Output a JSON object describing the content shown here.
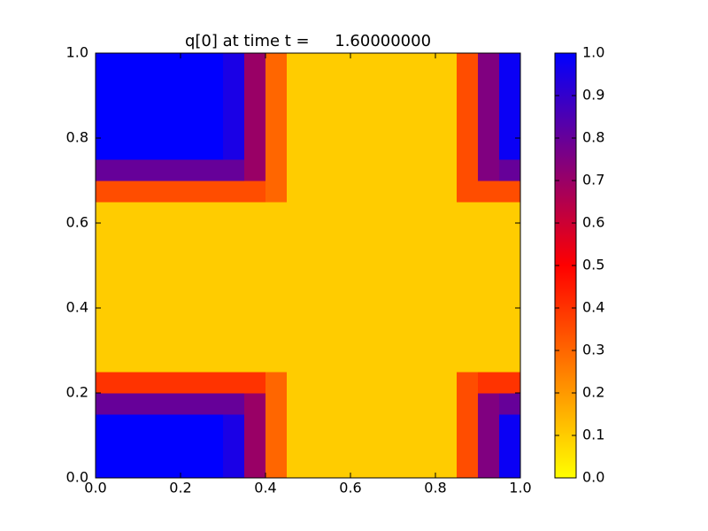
{
  "chart_data": {
    "type": "heatmap",
    "title": "q[0] at time t =     1.60000000",
    "xlim": [
      0,
      1
    ],
    "ylim": [
      0,
      1
    ],
    "xticks": [
      {
        "value": 0,
        "label": "0.0"
      },
      {
        "value": 0.2,
        "label": "0.2"
      },
      {
        "value": 0.4,
        "label": "0.4"
      },
      {
        "value": 0.6,
        "label": "0.6"
      },
      {
        "value": 0.8,
        "label": "0.8"
      },
      {
        "value": 1,
        "label": "1.0"
      }
    ],
    "yticks": [
      {
        "value": 0,
        "label": "0.0"
      },
      {
        "value": 0.2,
        "label": "0.2"
      },
      {
        "value": 0.4,
        "label": "0.4"
      },
      {
        "value": 0.6,
        "label": "0.6"
      },
      {
        "value": 0.8,
        "label": "0.8"
      },
      {
        "value": 1,
        "label": "1.0"
      }
    ],
    "clim": [
      0,
      1
    ],
    "cticks": [
      {
        "value": 0,
        "label": "0.0"
      },
      {
        "value": 0.1,
        "label": "0.1"
      },
      {
        "value": 0.2,
        "label": "0.2"
      },
      {
        "value": 0.3,
        "label": "0.3"
      },
      {
        "value": 0.4,
        "label": "0.4"
      },
      {
        "value": 0.5,
        "label": "0.5"
      },
      {
        "value": 0.6,
        "label": "0.6"
      },
      {
        "value": 0.7,
        "label": "0.7"
      },
      {
        "value": 0.8,
        "label": "0.8"
      },
      {
        "value": 0.9,
        "label": "0.9"
      },
      {
        "value": 1,
        "label": "1.0"
      }
    ],
    "colormap": [
      [
        0,
        "#ffff00"
      ],
      [
        0.5,
        "#ff0000"
      ],
      [
        0.75,
        "#800080"
      ],
      [
        1,
        "#0000ff"
      ]
    ],
    "z": [
      [
        1,
        1,
        1,
        1,
        1,
        1,
        0.95,
        0.7,
        0.3,
        0.1,
        0.1,
        0.1,
        0.1,
        0.1,
        0.1,
        0.1,
        0.1,
        0.35,
        0.75,
        0.98
      ],
      [
        1,
        1,
        1,
        1,
        1,
        1,
        0.95,
        0.7,
        0.3,
        0.1,
        0.1,
        0.1,
        0.1,
        0.1,
        0.1,
        0.1,
        0.1,
        0.35,
        0.75,
        0.98
      ],
      [
        1,
        1,
        1,
        1,
        1,
        1,
        0.95,
        0.7,
        0.3,
        0.1,
        0.1,
        0.1,
        0.1,
        0.1,
        0.1,
        0.1,
        0.1,
        0.35,
        0.75,
        0.98
      ],
      [
        0.8,
        0.8,
        0.8,
        0.8,
        0.8,
        0.8,
        0.8,
        0.7,
        0.3,
        0.1,
        0.1,
        0.1,
        0.1,
        0.1,
        0.1,
        0.1,
        0.1,
        0.35,
        0.75,
        0.8
      ],
      [
        0.4,
        0.4,
        0.4,
        0.4,
        0.4,
        0.4,
        0.4,
        0.4,
        0.3,
        0.1,
        0.1,
        0.1,
        0.1,
        0.1,
        0.1,
        0.1,
        0.1,
        0.35,
        0.4,
        0.4
      ],
      [
        0.1,
        0.1,
        0.1,
        0.1,
        0.1,
        0.1,
        0.1,
        0.1,
        0.1,
        0.1,
        0.1,
        0.1,
        0.1,
        0.1,
        0.1,
        0.1,
        0.1,
        0.1,
        0.1,
        0.1
      ],
      [
        0.1,
        0.1,
        0.1,
        0.1,
        0.1,
        0.1,
        0.1,
        0.1,
        0.1,
        0.1,
        0.1,
        0.1,
        0.1,
        0.1,
        0.1,
        0.1,
        0.1,
        0.1,
        0.1,
        0.1
      ],
      [
        0.1,
        0.1,
        0.1,
        0.1,
        0.1,
        0.1,
        0.1,
        0.1,
        0.1,
        0.1,
        0.1,
        0.1,
        0.1,
        0.1,
        0.1,
        0.1,
        0.1,
        0.1,
        0.1,
        0.1
      ],
      [
        0.1,
        0.1,
        0.1,
        0.1,
        0.1,
        0.1,
        0.1,
        0.1,
        0.1,
        0.1,
        0.1,
        0.1,
        0.1,
        0.1,
        0.1,
        0.1,
        0.1,
        0.1,
        0.1,
        0.1
      ],
      [
        0.1,
        0.1,
        0.1,
        0.1,
        0.1,
        0.1,
        0.1,
        0.1,
        0.1,
        0.1,
        0.1,
        0.1,
        0.1,
        0.1,
        0.1,
        0.1,
        0.1,
        0.1,
        0.1,
        0.1
      ],
      [
        0.1,
        0.1,
        0.1,
        0.1,
        0.1,
        0.1,
        0.1,
        0.1,
        0.1,
        0.1,
        0.1,
        0.1,
        0.1,
        0.1,
        0.1,
        0.1,
        0.1,
        0.1,
        0.1,
        0.1
      ],
      [
        0.1,
        0.1,
        0.1,
        0.1,
        0.1,
        0.1,
        0.1,
        0.1,
        0.1,
        0.1,
        0.1,
        0.1,
        0.1,
        0.1,
        0.1,
        0.1,
        0.1,
        0.1,
        0.1,
        0.1
      ],
      [
        0.1,
        0.1,
        0.1,
        0.1,
        0.1,
        0.1,
        0.1,
        0.1,
        0.1,
        0.1,
        0.1,
        0.1,
        0.1,
        0.1,
        0.1,
        0.1,
        0.1,
        0.1,
        0.1,
        0.1
      ],
      [
        0.35,
        0.35,
        0.35,
        0.35,
        0.35,
        0.35,
        0.35,
        0.35,
        0.3,
        0.1,
        0.1,
        0.1,
        0.1,
        0.1,
        0.1,
        0.1,
        0.1,
        0.35,
        0.35,
        0.35
      ],
      [
        0.8,
        0.8,
        0.8,
        0.8,
        0.8,
        0.8,
        0.8,
        0.7,
        0.3,
        0.1,
        0.1,
        0.1,
        0.1,
        0.1,
        0.1,
        0.1,
        0.1,
        0.35,
        0.75,
        0.8
      ],
      [
        1,
        1,
        1,
        1,
        1,
        1,
        0.95,
        0.7,
        0.3,
        0.1,
        0.1,
        0.1,
        0.1,
        0.1,
        0.1,
        0.1,
        0.1,
        0.35,
        0.75,
        0.98
      ],
      [
        1,
        1,
        1,
        1,
        1,
        1,
        0.95,
        0.7,
        0.3,
        0.1,
        0.1,
        0.1,
        0.1,
        0.1,
        0.1,
        0.1,
        0.1,
        0.35,
        0.75,
        0.98
      ],
      [
        1,
        1,
        1,
        1,
        1,
        1,
        0.95,
        0.7,
        0.3,
        0.1,
        0.1,
        0.1,
        0.1,
        0.1,
        0.1,
        0.1,
        0.1,
        0.35,
        0.75,
        0.98
      ],
      [
        1,
        1,
        1,
        1,
        1,
        1,
        0.95,
        0.7,
        0.3,
        0.1,
        0.1,
        0.1,
        0.1,
        0.1,
        0.1,
        0.1,
        0.1,
        0.35,
        0.75,
        0.98
      ],
      [
        1,
        1,
        1,
        1,
        1,
        1,
        0.95,
        0.7,
        0.3,
        0.1,
        0.1,
        0.1,
        0.1,
        0.1,
        0.1,
        0.1,
        0.1,
        0.35,
        0.75,
        0.98
      ]
    ]
  }
}
